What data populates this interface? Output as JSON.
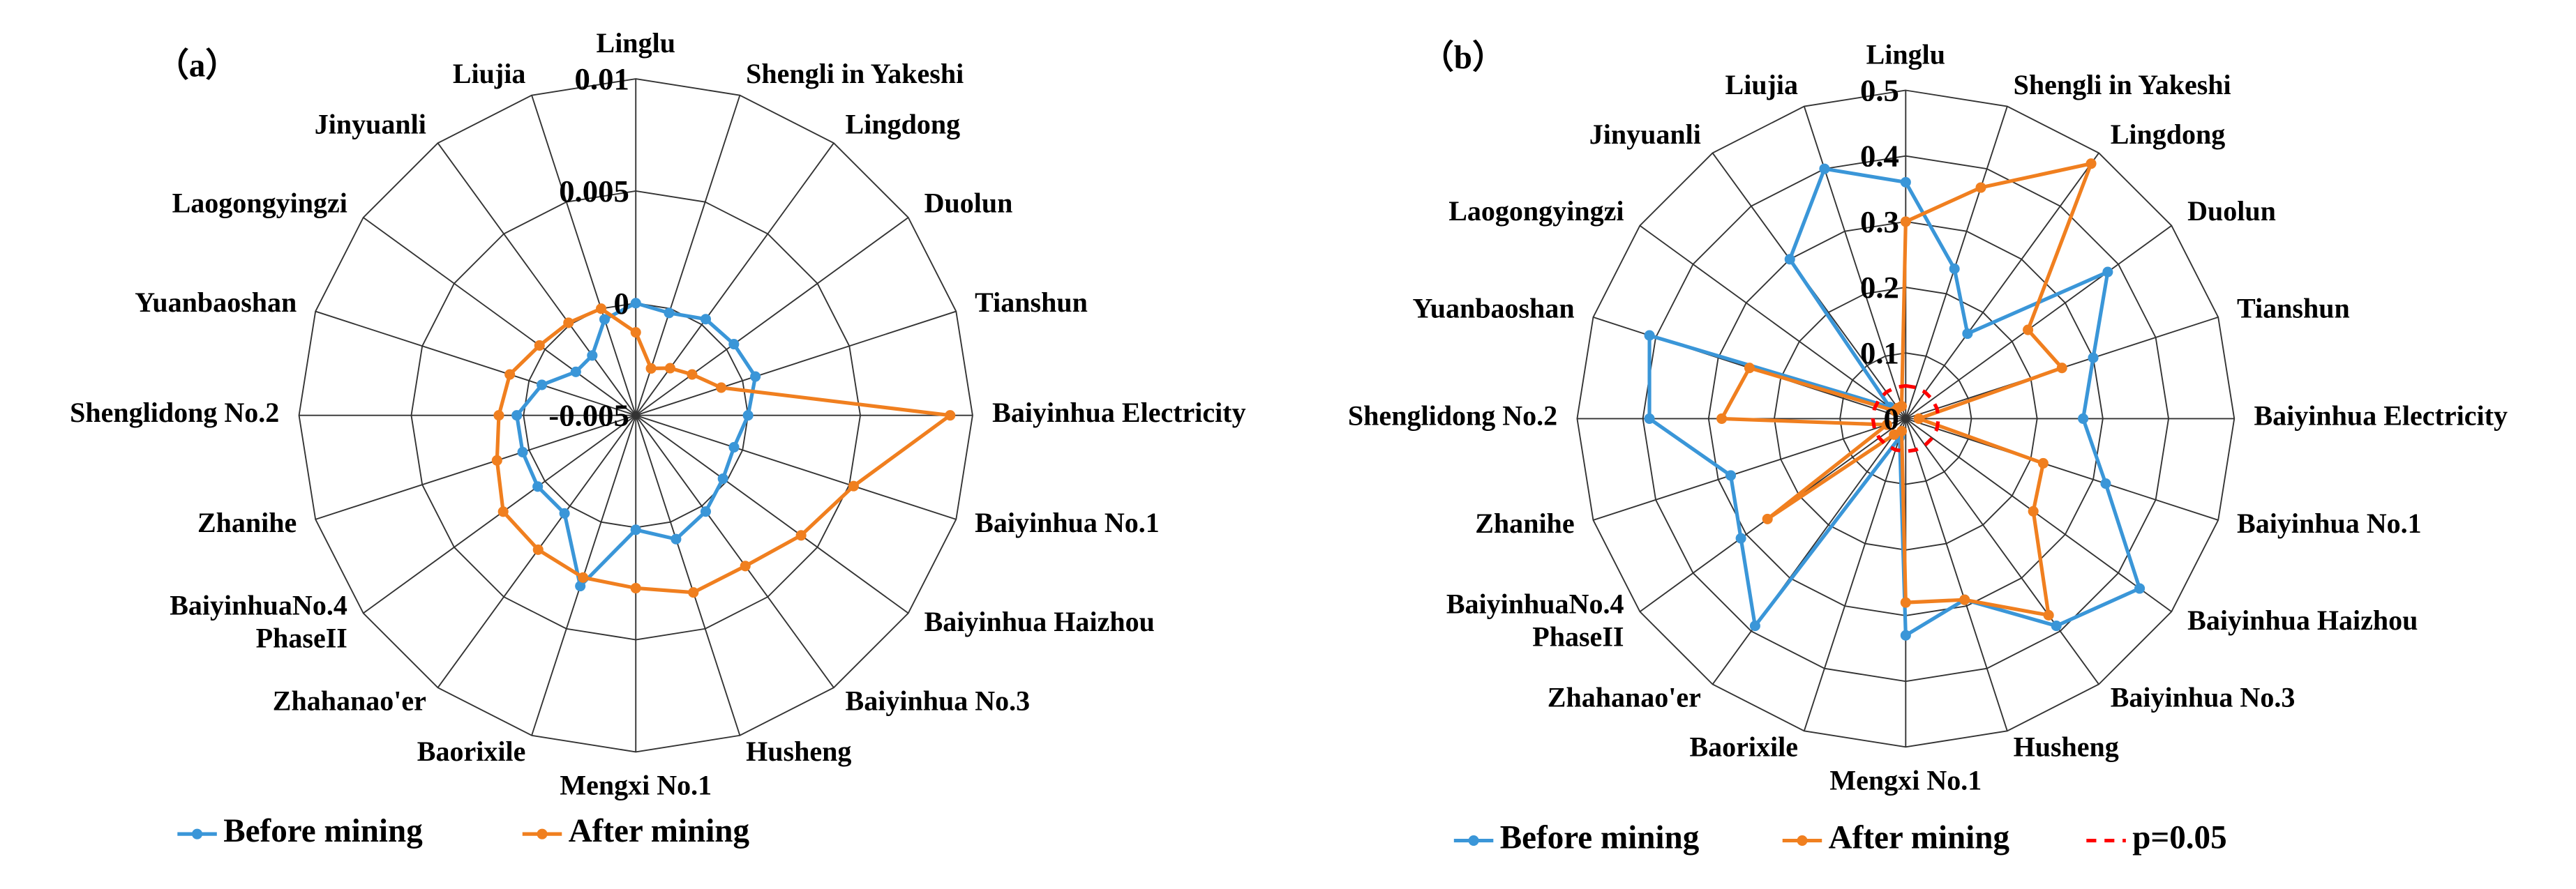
{
  "chart_data": [
    {
      "type": "radar",
      "title": "（a）",
      "categories": [
        "Linglu",
        "Shengli in Yakeshi",
        "Lingdong",
        "Duolun",
        "Tianshun",
        "Baiyinhua Electricity",
        "Baiyinhua No.1",
        "Baiyinhua Haizhou",
        "Baiyinhua No.3",
        "Husheng",
        "Mengxi No.1",
        "Baorixile",
        "Zhahanao'er",
        "BaiyinhuaNo.4\nPhaseII",
        "Zhanihe",
        "Shenglidong No.2",
        "Yuanbaoshan",
        "Laogongyingzi",
        "Jinyuanli",
        "Liujia"
      ],
      "ylim": [
        -0.005,
        0.01
      ],
      "yticks": [
        -0.005,
        0,
        0.005,
        0.01
      ],
      "series": [
        {
          "name": "Before mining",
          "color": "#3a96d8",
          "values": [
            0,
            -0.0002,
            0.0003,
            0.0004,
            0.0006,
            0,
            -0.0004,
            -0.0002,
            0.0003,
            0.0008,
            0.0001,
            0.003,
            0.0004,
            0.0004,
            0.0003,
            0.0003,
            -0.0006,
            -0.0017,
            -0.0017,
            -0.0005
          ]
        },
        {
          "name": "After mining",
          "color": "#f07f1f",
          "values": [
            -0.0013,
            -0.0028,
            -0.0024,
            -0.0019,
            -0.001,
            0.009,
            0.0052,
            0.0041,
            0.0033,
            0.0033,
            0.0027,
            0.0026,
            0.0024,
            0.0023,
            0.0015,
            0.0011,
            0.0009,
            0.0003,
            0.0001,
            0
          ]
        }
      ]
    },
    {
      "type": "radar",
      "title": "（b）",
      "categories": [
        "Linglu",
        "Shengli in Yakeshi",
        "Lingdong",
        "Duolun",
        "Tianshun",
        "Baiyinhua Electricity",
        "Baiyinhua No.1",
        "Baiyinhua Haizhou",
        "Baiyinhua No.3",
        "Husheng",
        "Mengxi No.1",
        "Baorixile",
        "Zhahanao'er",
        "BaiyinhuaNo.4\nPhaseII",
        "Zhanihe",
        "Shenglidong No.2",
        "Yuanbaoshan",
        "Laogongyingzi",
        "Jinyuanli",
        "Liujia"
      ],
      "ylim": [
        0,
        0.5
      ],
      "yticks": [
        0,
        0.1,
        0.2,
        0.3,
        0.4,
        0.5
      ],
      "series": [
        {
          "name": "Before mining",
          "color": "#3a96d8",
          "values": [
            0.36,
            0.24,
            0.16,
            0.38,
            0.3,
            0.27,
            0.32,
            0.44,
            0.39,
            0.29,
            0.33,
            0.03,
            0.39,
            0.31,
            0.28,
            0.39,
            0.41,
            0.03,
            0.3,
            0.4
          ]
        },
        {
          "name": "After mining",
          "color": "#f07f1f",
          "values": [
            0.3,
            0.37,
            0.48,
            0.23,
            0.25,
            0.02,
            0.22,
            0.24,
            0.37,
            0.29,
            0.28,
            0.02,
            0.03,
            0.26,
            0.03,
            0.28,
            0.25,
            0.02,
            0.02,
            0.02
          ]
        },
        {
          "name": "p=0.05",
          "color": "#ff0000",
          "dashed": true,
          "markers": false,
          "values": [
            0.05,
            0.05,
            0.05,
            0.05,
            0.05,
            0.05,
            0.05,
            0.05,
            0.05,
            0.05,
            0.05,
            0.05,
            0.05,
            0.05,
            0.05,
            0.05,
            0.05,
            0.05,
            0.05,
            0.05
          ]
        }
      ]
    }
  ]
}
